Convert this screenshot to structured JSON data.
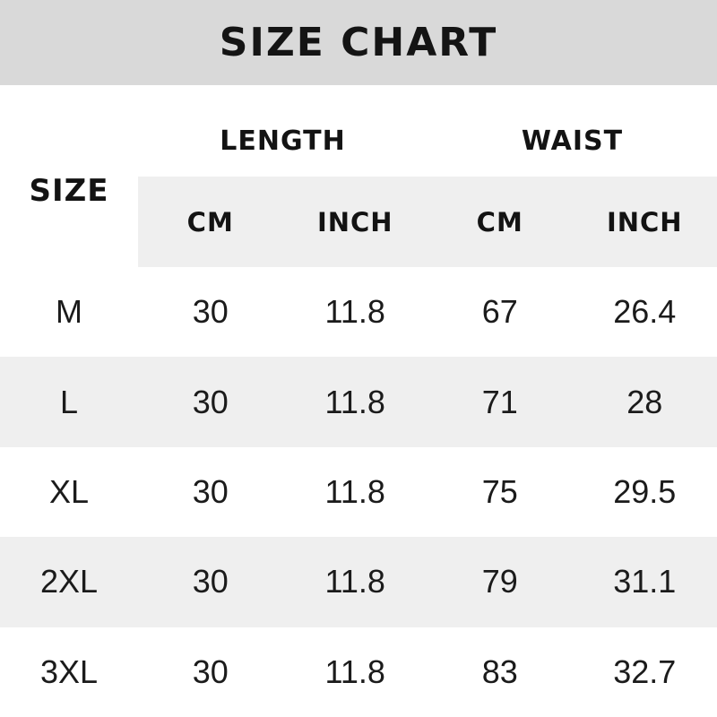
{
  "title": "SIZE CHART",
  "table": {
    "size_header": "SIZE",
    "groups": {
      "length": "LENGTH",
      "waist": "WAIST"
    },
    "unit_headers": [
      "CM",
      "INCH",
      "CM",
      "INCH"
    ],
    "rows": [
      {
        "size": "M",
        "values": [
          "30",
          "11.8",
          "67",
          "26.4"
        ]
      },
      {
        "size": "L",
        "values": [
          "30",
          "11.8",
          "71",
          "28"
        ]
      },
      {
        "size": "XL",
        "values": [
          "30",
          "11.8",
          "75",
          "29.5"
        ]
      },
      {
        "size": "2XL",
        "values": [
          "30",
          "11.8",
          "79",
          "31.1"
        ]
      },
      {
        "size": "3XL",
        "values": [
          "30",
          "11.8",
          "83",
          "32.7"
        ]
      }
    ]
  },
  "colors": {
    "title_band": "#d9d9d9",
    "stripe": "#efefef",
    "header_text": "#131313",
    "data_text": "#1b1b1b",
    "background": "#ffffff"
  },
  "chart_data": {
    "type": "table",
    "title": "SIZE CHART",
    "row_header": "SIZE",
    "column_groups": [
      {
        "label": "LENGTH",
        "columns": [
          "CM",
          "INCH"
        ]
      },
      {
        "label": "WAIST",
        "columns": [
          "CM",
          "INCH"
        ]
      }
    ],
    "rows": [
      {
        "size": "M",
        "length_cm": 30,
        "length_inch": 11.8,
        "waist_cm": 67,
        "waist_inch": 26.4
      },
      {
        "size": "L",
        "length_cm": 30,
        "length_inch": 11.8,
        "waist_cm": 71,
        "waist_inch": 28
      },
      {
        "size": "XL",
        "length_cm": 30,
        "length_inch": 11.8,
        "waist_cm": 75,
        "waist_inch": 29.5
      },
      {
        "size": "2XL",
        "length_cm": 30,
        "length_inch": 11.8,
        "waist_cm": 79,
        "waist_inch": 31.1
      },
      {
        "size": "3XL",
        "length_cm": 30,
        "length_inch": 11.8,
        "waist_cm": 83,
        "waist_inch": 32.7
      }
    ],
    "layout": {
      "striped_rows": [
        "L",
        "2XL"
      ],
      "grid": "off",
      "borders": "none"
    }
  }
}
